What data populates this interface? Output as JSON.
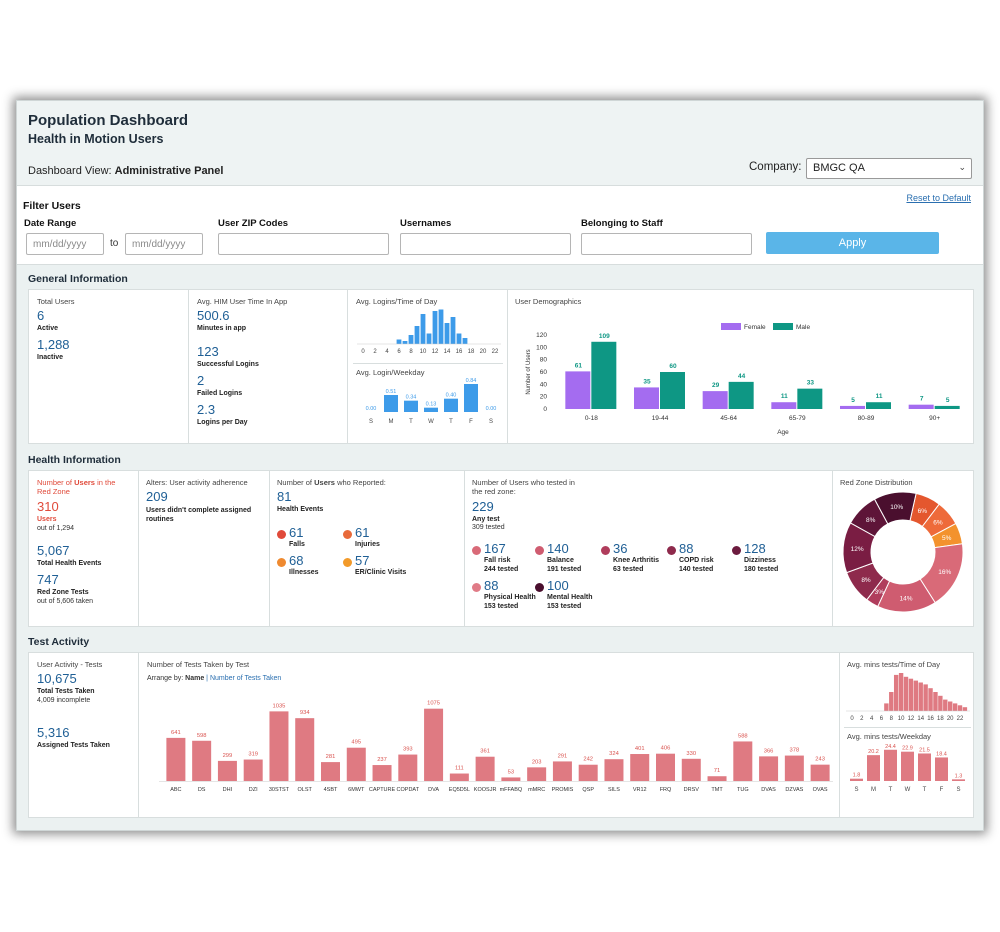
{
  "header": {
    "title": "Population Dashboard",
    "subtitle": "Health in Motion Users",
    "dashboard_view_prefix": "Dashboard View:",
    "dashboard_view_value": "Administrative Panel",
    "company_label": "Company:",
    "company_value": "BMGC QA"
  },
  "filter": {
    "title": "Filter Users",
    "reset_label": "Reset to Default",
    "date_range_label": "Date Range",
    "date_from_placeholder": "mm/dd/yyyy",
    "to_label": "to",
    "date_to_placeholder": "mm/dd/yyyy",
    "zip_label": "User ZIP Codes",
    "usernames_label": "Usernames",
    "staff_label": "Belonging to Staff",
    "apply_label": "Apply"
  },
  "general": {
    "section_title": "General Information",
    "total_users_label": "Total Users",
    "active_value": "6",
    "active_label": "Active",
    "inactive_value": "1,288",
    "inactive_label": "Inactive",
    "avg_time_label": "Avg. HIM User Time In App",
    "minutes_value": "500.6",
    "minutes_label": "Minutes in app",
    "successful_value": "123",
    "successful_label": "Successful Logins",
    "failed_value": "2",
    "failed_label": "Failed Logins",
    "per_day_value": "2.3",
    "per_day_label": "Logins per Day",
    "logins_tod_label": "Avg. Logins/Time of Day",
    "logins_weekday_label": "Avg. Login/Weekday",
    "demographics_label": "User Demographics"
  },
  "health": {
    "section_title": "Health Information",
    "redzone_label_pre": "Number of",
    "redzone_label_users": "Users",
    "redzone_label_post": "in the Red Zone",
    "redzone_value": "310",
    "redzone_users_label": "Users",
    "redzone_out_of": "out of 1,294",
    "events_value": "5,067",
    "events_label": "Total Health Events",
    "tests_value": "747",
    "tests_label": "Red Zone Tests",
    "tests_out_of": "out of 5,606 taken",
    "adherence_label": "Alters: User activity adherence",
    "adherence_value": "209",
    "adherence_desc": "Users didn't complete assigned routines",
    "reported_label_pre": "Number of",
    "reported_label_users": "Users",
    "reported_label_post": "who Reported:",
    "reported_value": "81",
    "reported_events_label": "Health Events",
    "reported_items": [
      {
        "value": "61",
        "label": "Falls",
        "color": "#e04a3a"
      },
      {
        "value": "61",
        "label": "Injuries",
        "color": "#e86a3a"
      },
      {
        "value": "68",
        "label": "Illnesses",
        "color": "#ef8a30"
      },
      {
        "value": "57",
        "label": "ER/Clinic Visits",
        "color": "#f29a2a"
      }
    ],
    "tested_label": "Number of Users who tested in the red zone:",
    "any_test_value": "229",
    "any_test_label": "Any test",
    "any_test_sub": "309 tested",
    "tested_items": [
      {
        "value": "167",
        "label": "Fall risk",
        "sub": "244 tested",
        "color": "#d96a78"
      },
      {
        "value": "140",
        "label": "Balance",
        "sub": "191 tested",
        "color": "#cf5c70"
      },
      {
        "value": "36",
        "label": "Knee Arthritis",
        "sub": "63 tested",
        "color": "#b03d5c"
      },
      {
        "value": "88",
        "label": "COPD risk",
        "sub": "140 tested",
        "color": "#8e2a4c"
      },
      {
        "value": "128",
        "label": "Dizziness",
        "sub": "180 tested",
        "color": "#6c1b3f"
      },
      {
        "value": "88",
        "label": "Physical Health",
        "sub": "153 tested",
        "color": "#e07b87"
      },
      {
        "value": "100",
        "label": "Mental Health",
        "sub": "153 tested",
        "color": "#4a0f2e"
      }
    ],
    "redzone_dist_label": "Red Zone Distribution"
  },
  "test": {
    "section_title": "Test Activity",
    "activity_label": "User Activity - Tests",
    "total_value": "10,675",
    "total_label": "Total Tests Taken",
    "incomplete": "4,009 incomplete",
    "assigned_value": "5,316",
    "assigned_label": "Assigned Tests Taken",
    "num_tests_label": "Number of Tests Taken by Test",
    "arrange_prefix": "Arrange by:",
    "arrange_name": "Name",
    "arrange_sep": "|",
    "arrange_number": "Number of Tests Taken",
    "mins_tod_label": "Avg. mins tests/Time of Day",
    "mins_weekday_label": "Avg. mins tests/Weekday"
  },
  "chart_data": [
    {
      "id": "logins_time_of_day",
      "type": "bar",
      "color": "#3d9be9",
      "x_ticks": [
        "0",
        "2",
        "4",
        "6",
        "8",
        "10",
        "12",
        "14",
        "16",
        "18",
        "20",
        "22"
      ],
      "x": [
        6,
        7,
        8,
        9,
        10,
        11,
        12,
        13,
        14,
        15,
        16,
        17
      ],
      "values": [
        0.15,
        0.1,
        0.3,
        0.6,
        1.0,
        0.35,
        1.1,
        1.15,
        0.7,
        0.9,
        0.35,
        0.2
      ]
    },
    {
      "id": "logins_weekday",
      "type": "bar",
      "color": "#3d9be9",
      "categories": [
        "S",
        "M",
        "T",
        "W",
        "T",
        "F",
        "S"
      ],
      "values": [
        0.0,
        0.51,
        0.34,
        0.13,
        0.4,
        0.84,
        0.0
      ],
      "value_labels": [
        "0.00",
        "0.51",
        "0.34",
        "0.13",
        "0.40",
        "0.84",
        "0.00"
      ]
    },
    {
      "id": "user_demographics",
      "type": "bar",
      "categories": [
        "0-18",
        "19-44",
        "45-64",
        "65-79",
        "80-89",
        "90+"
      ],
      "series": [
        {
          "name": "Female",
          "color": "#a46cf0",
          "values": [
            61,
            35,
            29,
            11,
            5,
            7
          ]
        },
        {
          "name": "Male",
          "color": "#0e9784",
          "values": [
            109,
            60,
            44,
            33,
            11,
            5
          ]
        }
      ],
      "xlabel": "Age",
      "ylabel": "Number of Users",
      "y_ticks": [
        0,
        20,
        40,
        60,
        80,
        100,
        120
      ],
      "ylim": [
        0,
        120
      ],
      "legend": "top"
    },
    {
      "id": "red_zone_distribution",
      "type": "pie",
      "donut": true,
      "slices": [
        {
          "label": "6%",
          "value": 6,
          "color": "#e4572e"
        },
        {
          "label": "6%",
          "value": 6,
          "color": "#ee6a3a"
        },
        {
          "label": "5%",
          "value": 5,
          "color": "#f3922d"
        },
        {
          "label": "16%",
          "value": 16,
          "color": "#d96a78"
        },
        {
          "label": "14%",
          "value": 14,
          "color": "#cf5c70"
        },
        {
          "label": "3%",
          "value": 3,
          "color": "#b03d5c"
        },
        {
          "label": "8%",
          "value": 8,
          "color": "#8e2a4c"
        },
        {
          "label": "12%",
          "value": 12,
          "color": "#7a1d43"
        },
        {
          "label": "8%",
          "value": 8,
          "color": "#5e1538"
        },
        {
          "label": "10%",
          "value": 10,
          "color": "#4a0f2e"
        }
      ]
    },
    {
      "id": "tests_by_test",
      "type": "bar",
      "color": "#df7a82",
      "categories": [
        "ABC",
        "DS",
        "DHI",
        "DZI",
        "30STST",
        "OLST",
        "4SBT",
        "6MWT",
        "CAPTURE",
        "COPDAT",
        "DVA",
        "EQ5D5L",
        "KOOSJR",
        "mFFABQ",
        "mMRC",
        "PROMIS",
        "QSP",
        "SILS",
        "VR12",
        "FRQ",
        "DRSV",
        "TMT",
        "TUG",
        "DVAS",
        "DZVAS",
        "OVAS"
      ],
      "values": [
        641,
        598,
        299,
        319,
        1035,
        934,
        281,
        495,
        237,
        393,
        1075,
        111,
        361,
        53,
        203,
        291,
        242,
        324,
        401,
        406,
        330,
        71,
        588,
        366,
        378,
        243
      ]
    },
    {
      "id": "mins_time_of_day",
      "type": "bar",
      "color": "#df7a82",
      "x_ticks": [
        "0",
        "2",
        "4",
        "6",
        "8",
        "10",
        "12",
        "14",
        "16",
        "18",
        "20",
        "22"
      ],
      "x": [
        7,
        8,
        9,
        10,
        11,
        12,
        13,
        14,
        15,
        16,
        17,
        18,
        19,
        20,
        21,
        22,
        23
      ],
      "values": [
        0.2,
        0.5,
        0.95,
        1.0,
        0.9,
        0.85,
        0.8,
        0.75,
        0.7,
        0.6,
        0.5,
        0.4,
        0.3,
        0.25,
        0.2,
        0.15,
        0.1
      ]
    },
    {
      "id": "mins_weekday",
      "type": "bar",
      "color": "#df7a82",
      "categories": [
        "S",
        "M",
        "T",
        "W",
        "T",
        "F",
        "S"
      ],
      "values": [
        1.8,
        20.2,
        24.4,
        22.9,
        21.5,
        18.4,
        1.3
      ],
      "value_labels": [
        "1.8",
        "20.2",
        "24.4",
        "22.9",
        "21.5",
        "18.4",
        "1.3"
      ]
    }
  ]
}
